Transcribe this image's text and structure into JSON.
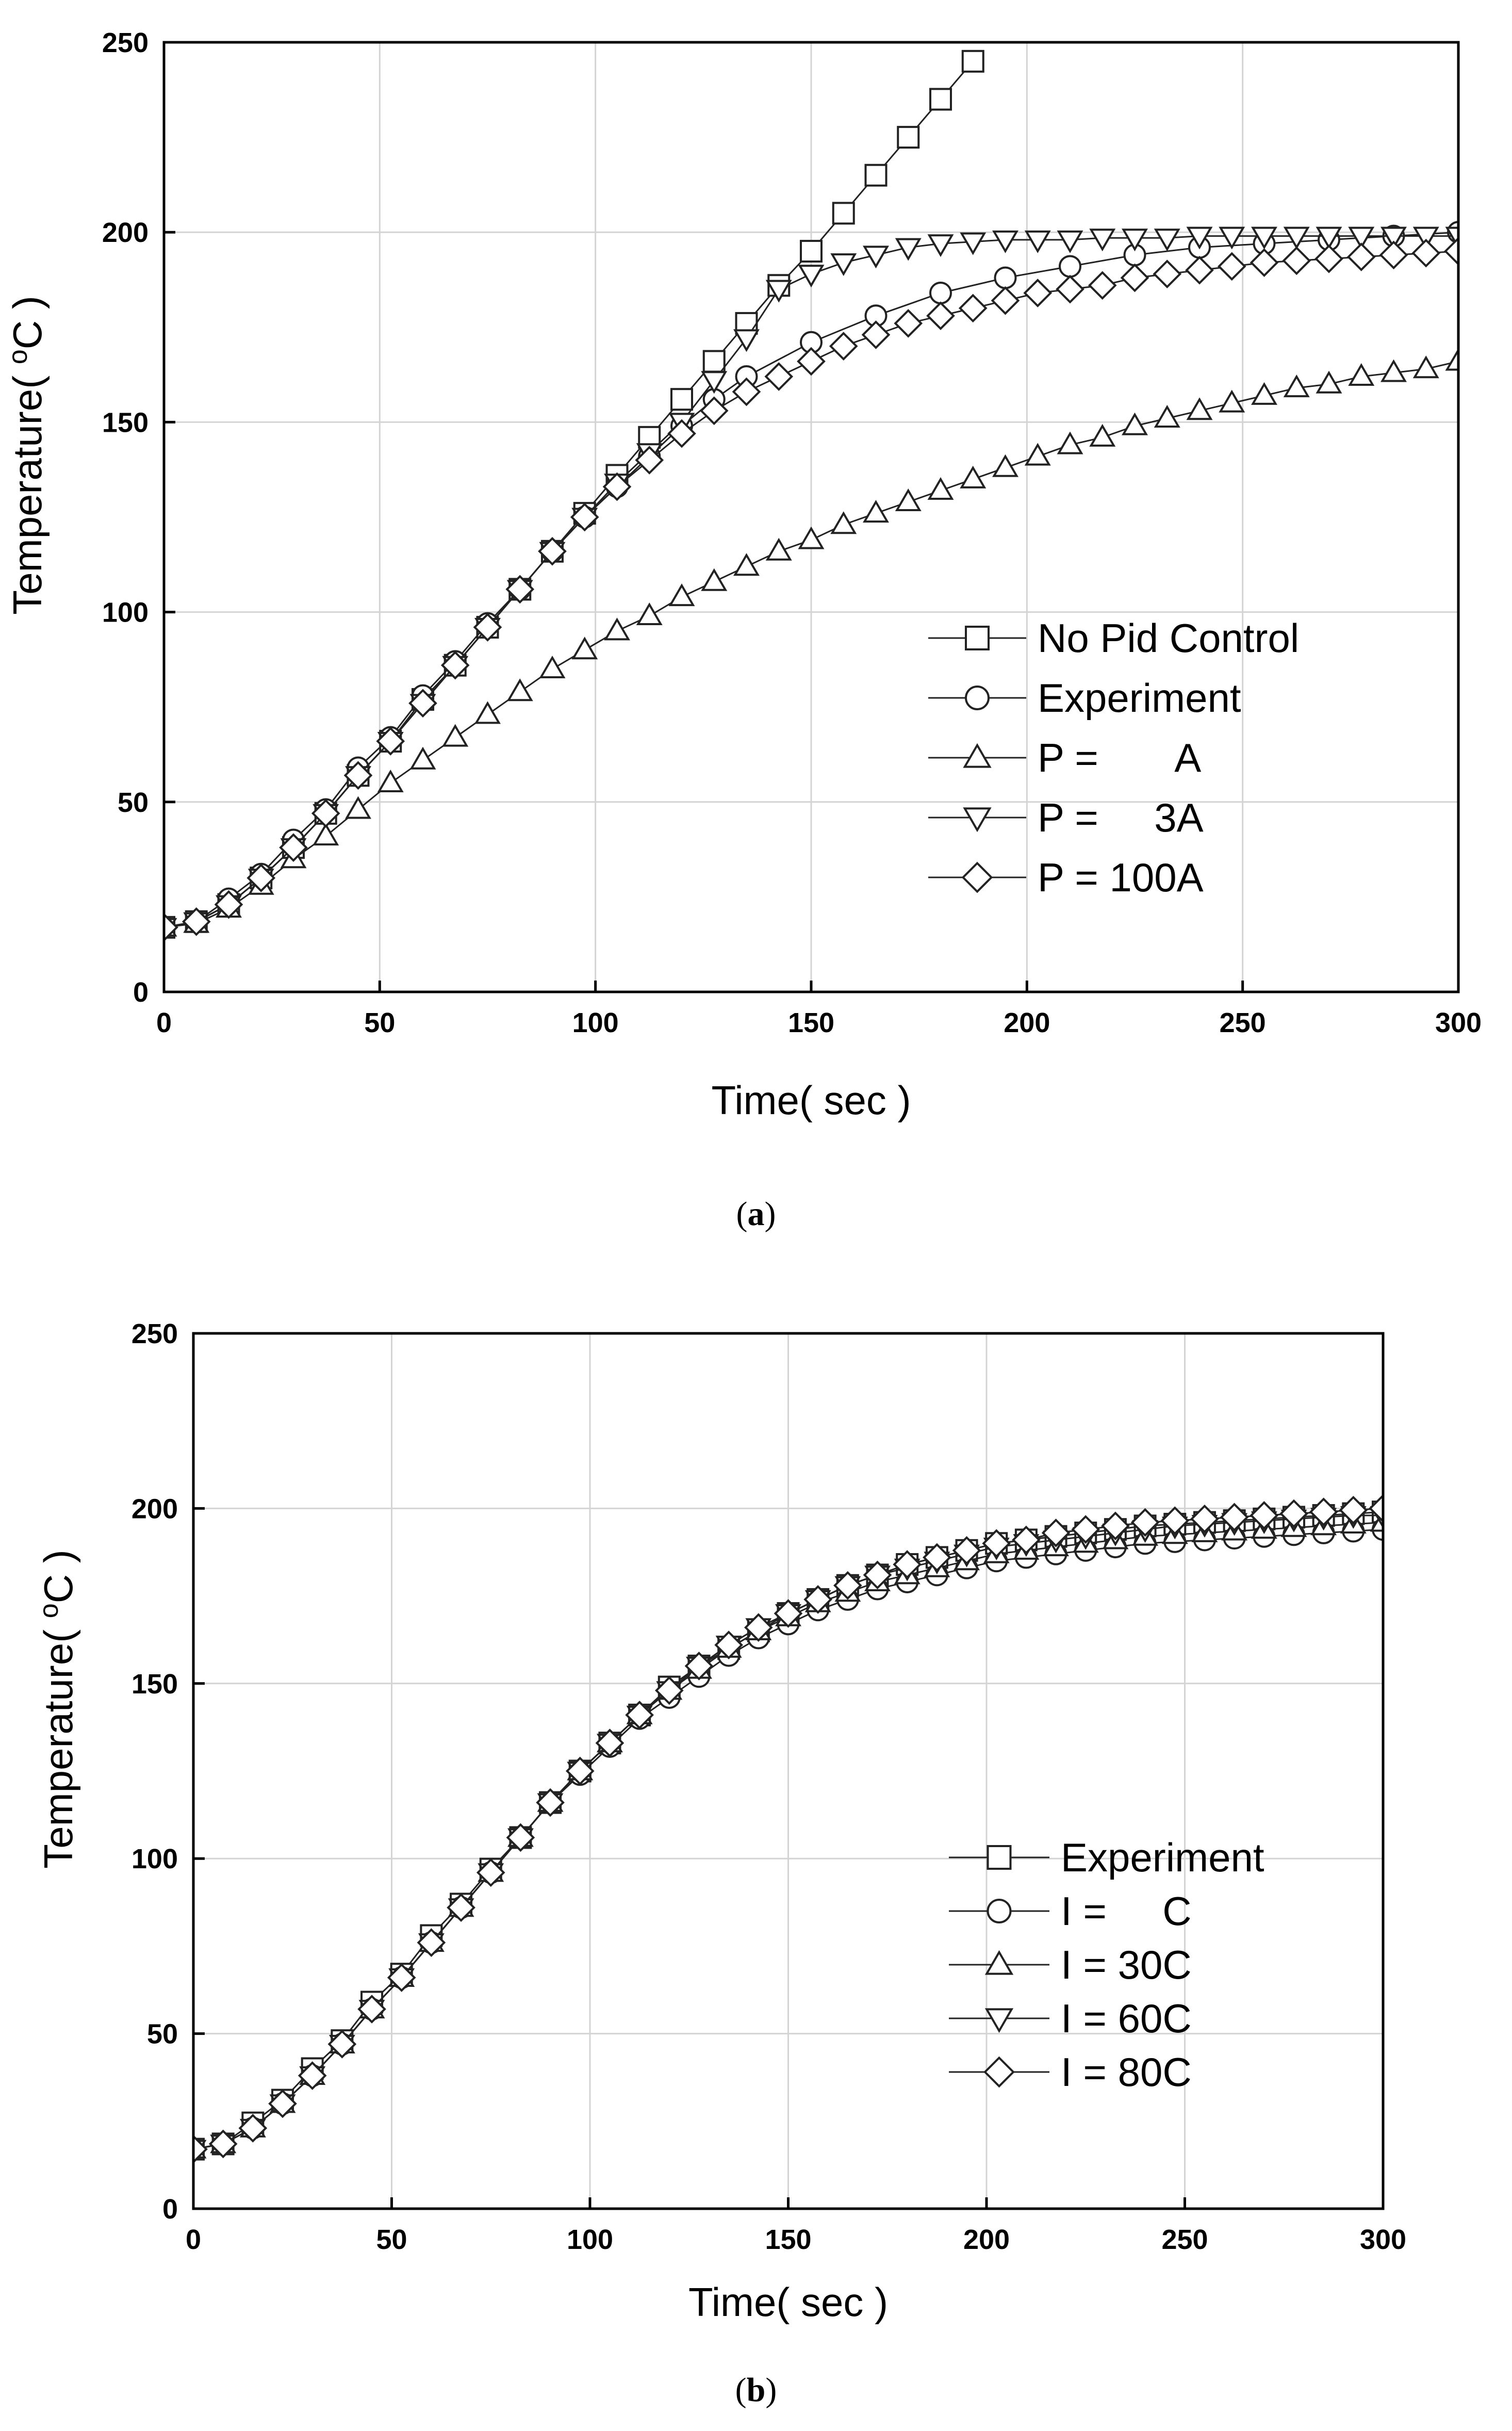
{
  "chart_data": [
    {
      "type": "line",
      "caption_letter": "a",
      "xlabel": "Time( sec )",
      "ylabel_main": "Temperature( ",
      "ylabel_sup": "o",
      "ylabel_tail": "C )",
      "xlim": [
        0,
        300
      ],
      "ylim": [
        0,
        250
      ],
      "xticks": [
        0,
        50,
        100,
        150,
        200,
        250,
        300
      ],
      "yticks": [
        0,
        50,
        100,
        150,
        200,
        250
      ],
      "grid": true,
      "legend_position": "lower-right",
      "series": [
        {
          "name": "No Pid Control",
          "marker": "square",
          "x": [
            0,
            7.5,
            15,
            22.5,
            30,
            37.5,
            45,
            52.5,
            60,
            67.5,
            75,
            82.5,
            90,
            97.5,
            105,
            112.5,
            120,
            127.5,
            135,
            142.5,
            150,
            157.5,
            165,
            172.5,
            180,
            187.5
          ],
          "y": [
            17,
            18.5,
            23,
            30,
            38,
            47,
            57,
            66,
            77,
            86,
            96,
            106,
            116,
            126,
            136,
            146,
            156,
            166,
            176,
            186,
            195,
            205,
            215,
            225,
            235,
            245
          ]
        },
        {
          "name": "Experiment",
          "marker": "circle",
          "x": [
            0,
            7.5,
            15,
            22.5,
            30,
            37.5,
            45,
            52.5,
            60,
            67.5,
            75,
            82.5,
            90,
            97.5,
            105,
            112.5,
            120,
            127.5,
            135,
            150,
            165,
            180,
            195,
            210,
            225,
            240,
            255,
            270,
            285,
            300
          ],
          "y": [
            17,
            18.5,
            24.5,
            31,
            40,
            48,
            59,
            67,
            78,
            87,
            97,
            106,
            116,
            125,
            133,
            141,
            149,
            156,
            162,
            171,
            178,
            184,
            188,
            191,
            194,
            196,
            197,
            198,
            199,
            200
          ]
        },
        {
          "name": "P =       A",
          "marker": "triangle-up",
          "x": [
            0,
            7.5,
            15,
            22.5,
            30,
            37.5,
            45,
            52.5,
            60,
            67.5,
            75,
            82.5,
            90,
            97.5,
            105,
            112.5,
            120,
            127.5,
            135,
            142.5,
            150,
            157.5,
            165,
            172.5,
            180,
            187.5,
            195,
            202.5,
            210,
            217.5,
            225,
            232.5,
            240,
            247.5,
            255,
            262.5,
            270,
            277.5,
            285,
            292.5,
            300
          ],
          "y": [
            17,
            18,
            22,
            28,
            35,
            41,
            48,
            55,
            61,
            67,
            73,
            79,
            85,
            90,
            95,
            99,
            104,
            108,
            112,
            116,
            119,
            123,
            126,
            129,
            132,
            135,
            138,
            141,
            144,
            146,
            149,
            151,
            153,
            155,
            157,
            159,
            160,
            162,
            163,
            164,
            166
          ]
        },
        {
          "name": "P =     3A",
          "marker": "triangle-down",
          "x": [
            0,
            7.5,
            15,
            22.5,
            30,
            37.5,
            45,
            52.5,
            60,
            67.5,
            75,
            82.5,
            90,
            97.5,
            105,
            112.5,
            120,
            127.5,
            135,
            142.5,
            150,
            157.5,
            165,
            172.5,
            180,
            187.5,
            195,
            202.5,
            210,
            217.5,
            225,
            232.5,
            240,
            247.5,
            255,
            262.5,
            270,
            277.5,
            285,
            292.5,
            300
          ],
          "y": [
            17,
            18.5,
            23,
            30,
            38,
            47,
            57,
            66,
            76,
            86,
            96,
            106,
            116,
            125,
            134,
            142,
            150,
            161,
            172,
            185,
            189,
            192,
            194,
            196,
            197,
            197.5,
            198,
            198,
            198,
            198.5,
            198.5,
            198.5,
            199,
            199,
            199,
            199,
            199,
            199,
            199,
            199,
            199
          ]
        },
        {
          "name": "P = 100A",
          "marker": "diamond",
          "x": [
            0,
            7.5,
            15,
            22.5,
            30,
            37.5,
            45,
            52.5,
            60,
            67.5,
            75,
            82.5,
            90,
            97.5,
            105,
            112.5,
            120,
            127.5,
            135,
            142.5,
            150,
            157.5,
            165,
            172.5,
            180,
            187.5,
            195,
            202.5,
            210,
            217.5,
            225,
            232.5,
            240,
            247.5,
            255,
            262.5,
            270,
            277.5,
            285,
            292.5,
            300
          ],
          "y": [
            17,
            18.5,
            23,
            30,
            38,
            47,
            57,
            66,
            76,
            86,
            96,
            106,
            116,
            125,
            133,
            140,
            147,
            153,
            158,
            162,
            166,
            170,
            173,
            176,
            178,
            180,
            182,
            184,
            185,
            186,
            188,
            189,
            190,
            191,
            192,
            192.5,
            193,
            193.5,
            194,
            194.5,
            195
          ]
        }
      ]
    },
    {
      "type": "line",
      "caption_letter": "b",
      "xlabel": "Time( sec )",
      "ylabel_main": "Temperature( ",
      "ylabel_sup": "o",
      "ylabel_tail": "C )",
      "xlim": [
        0,
        300
      ],
      "ylim": [
        0,
        250
      ],
      "xticks": [
        0,
        50,
        100,
        150,
        200,
        250,
        300
      ],
      "yticks": [
        0,
        50,
        100,
        150,
        200,
        250
      ],
      "grid": true,
      "legend_position": "lower-right",
      "series": [
        {
          "name": "Experiment",
          "marker": "square",
          "x": [
            0,
            7.5,
            15,
            22.5,
            30,
            37.5,
            45,
            52.5,
            60,
            67.5,
            75,
            82.5,
            90,
            97.5,
            105,
            112.5,
            120,
            127.5,
            135,
            142.5,
            150,
            157.5,
            165,
            172.5,
            180,
            187.5,
            195,
            202.5,
            210,
            217.5,
            225,
            232.5,
            240,
            247.5,
            255,
            262.5,
            270,
            277.5,
            285,
            292.5,
            300
          ],
          "y": [
            17,
            18.5,
            24.5,
            31,
            40,
            48,
            59,
            67,
            78,
            87,
            97,
            106,
            116,
            125,
            133,
            141,
            149,
            155,
            160,
            165,
            170,
            174,
            178,
            181,
            184,
            186,
            188,
            190,
            191,
            192,
            193,
            194,
            195,
            195.5,
            196,
            196.5,
            197,
            197.5,
            198,
            198.5,
            199
          ]
        },
        {
          "name": "I =     C",
          "marker": "circle",
          "x": [
            0,
            7.5,
            15,
            22.5,
            30,
            37.5,
            45,
            52.5,
            60,
            67.5,
            75,
            82.5,
            90,
            97.5,
            105,
            112.5,
            120,
            127.5,
            135,
            142.5,
            150,
            157.5,
            165,
            172.5,
            180,
            187.5,
            195,
            202.5,
            210,
            217.5,
            225,
            232.5,
            240,
            247.5,
            255,
            262.5,
            270,
            277.5,
            285,
            292.5,
            300
          ],
          "y": [
            17,
            18.5,
            23,
            30,
            38,
            47,
            57,
            66,
            76,
            86,
            96,
            106,
            116,
            124,
            132,
            140,
            146,
            152,
            158,
            163,
            167,
            171,
            174,
            177,
            179,
            181,
            183,
            185,
            186,
            187,
            188,
            189,
            190,
            190.5,
            191,
            191.5,
            192,
            192.5,
            193,
            193.5,
            194
          ]
        },
        {
          "name": "I = 30C",
          "marker": "triangle-up",
          "x": [
            0,
            7.5,
            15,
            22.5,
            30,
            37.5,
            45,
            52.5,
            60,
            67.5,
            75,
            82.5,
            90,
            97.5,
            105,
            112.5,
            120,
            127.5,
            135,
            142.5,
            150,
            157.5,
            165,
            172.5,
            180,
            187.5,
            195,
            202.5,
            210,
            217.5,
            225,
            232.5,
            240,
            247.5,
            255,
            262.5,
            270,
            277.5,
            285,
            292.5,
            300
          ],
          "y": [
            17,
            18.5,
            23,
            30,
            38,
            47,
            57,
            66,
            76,
            86,
            96,
            106,
            116,
            125,
            133,
            141,
            148,
            154,
            160,
            165,
            169,
            173,
            176,
            179,
            181,
            183,
            185,
            187,
            188,
            189,
            190,
            191,
            192,
            192.5,
            193,
            193.5,
            194,
            194.5,
            195,
            195.5,
            196
          ]
        },
        {
          "name": "I = 60C",
          "marker": "triangle-down",
          "x": [
            0,
            7.5,
            15,
            22.5,
            30,
            37.5,
            45,
            52.5,
            60,
            67.5,
            75,
            82.5,
            90,
            97.5,
            105,
            112.5,
            120,
            127.5,
            135,
            142.5,
            150,
            157.5,
            165,
            172.5,
            180,
            187.5,
            195,
            202.5,
            210,
            217.5,
            225,
            232.5,
            240,
            247.5,
            255,
            262.5,
            270,
            277.5,
            285,
            292.5,
            300
          ],
          "y": [
            17,
            18.5,
            23,
            30,
            38,
            47,
            57,
            66,
            76,
            86,
            96,
            106,
            116,
            125,
            133,
            141,
            148,
            155,
            161,
            166,
            170,
            174,
            178,
            181,
            183,
            185,
            187,
            189,
            190,
            191,
            192,
            193,
            194,
            195,
            195.5,
            196,
            196.5,
            197,
            197.5,
            198,
            198
          ]
        },
        {
          "name": "I = 80C",
          "marker": "diamond",
          "x": [
            0,
            7.5,
            15,
            22.5,
            30,
            37.5,
            45,
            52.5,
            60,
            67.5,
            75,
            82.5,
            90,
            97.5,
            105,
            112.5,
            120,
            127.5,
            135,
            142.5,
            150,
            157.5,
            165,
            172.5,
            180,
            187.5,
            195,
            202.5,
            210,
            217.5,
            225,
            232.5,
            240,
            247.5,
            255,
            262.5,
            270,
            277.5,
            285,
            292.5,
            300
          ],
          "y": [
            17,
            18.5,
            23,
            30,
            38,
            47,
            57,
            66,
            76,
            86,
            96,
            106,
            116,
            125,
            133,
            141,
            148,
            155,
            161,
            166,
            170,
            174,
            178,
            181,
            184,
            186,
            188,
            190,
            191,
            193,
            194,
            195,
            196,
            196.5,
            197,
            197.5,
            198,
            198.5,
            199,
            199.5,
            200
          ]
        }
      ]
    }
  ]
}
